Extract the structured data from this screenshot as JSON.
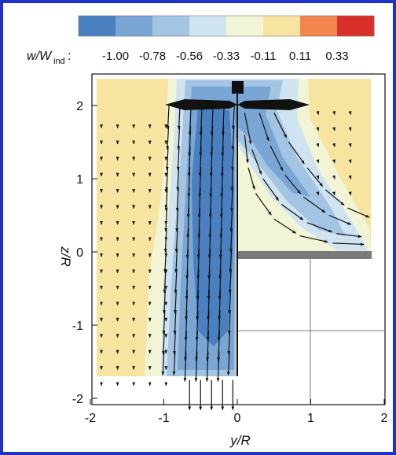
{
  "chart_data": {
    "type": "heatmap",
    "title": "",
    "colorbar": {
      "label_symbol": "w/W",
      "label_subscript": "ind",
      "label_suffix": ":",
      "tick_labels": [
        "-1.00",
        "-0.78",
        "-0.56",
        "-0.33",
        "-0.11",
        "0.11",
        "0.33"
      ],
      "colors": [
        "#4a7fc0",
        "#79a6d4",
        "#a3c4e3",
        "#cfe3f1",
        "#f2f4d6",
        "#f7e4a0",
        "#f4854f",
        "#d7302b"
      ]
    },
    "xlabel": "y/R",
    "ylabel": "z/R",
    "xlim": [
      -2,
      2
    ],
    "ylim": [
      -2.1,
      2.45
    ],
    "x_ticks": [
      "-2",
      "-1",
      "0",
      "1",
      "2"
    ],
    "y_ticks": [
      "2",
      "1",
      "0",
      "-1",
      "-2"
    ],
    "grid": "lower-right quadrant only",
    "rotor_center": [
      0.0,
      2.25
    ],
    "rotor_radius": 1.0,
    "ground_plane_z": 0.0,
    "background_level": "slight upwash (~0.05)",
    "contours": [
      {
        "name": "wake outer edge",
        "level": -0.11
      },
      {
        "name": "wake band",
        "level": -0.33
      },
      {
        "name": "wake band",
        "level": -0.56
      },
      {
        "name": "wake core",
        "level": -0.78
      }
    ]
  }
}
